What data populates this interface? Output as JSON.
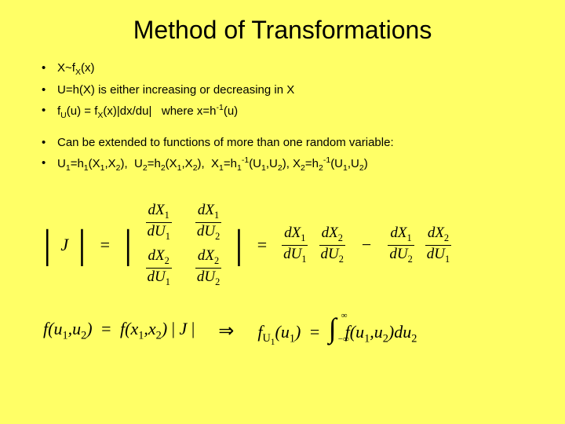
{
  "title": "Method of Transformations",
  "bullets": {
    "b1_html": "X~f<sub>X</sub>(x)",
    "b2": "U=h(X) is either increasing or decreasing in X",
    "b3_html": "f<sub>U</sub>(u) = f<sub>X</sub>(x)|dx/du| &nbsp; where x=h<sup>-1</sup>(u)",
    "b4": "Can be extended to functions of more than one random variable:",
    "b5_html": "U<sub>1</sub>=h<sub>1</sub>(X<sub>1</sub>,X<sub>2</sub>), &nbsp;U<sub>2</sub>=h<sub>2</sub>(X<sub>1</sub>,X<sub>2</sub>), &nbsp;X<sub>1</sub>=h<sub>1</sub><sup>-1</sup>(U<sub>1</sub>,U<sub>2</sub>), X<sub>2</sub>=h<sub>2</sub><sup>-1</sup>(U<sub>1</sub>,U<sub>2</sub>)"
  },
  "math": {
    "J": "J",
    "dX1": "dX",
    "s1": "1",
    "dX2": "dX",
    "s2": "2",
    "dU1": "dU",
    "dU2": "dU",
    "f": "f",
    "u1u2": "u",
    "x1x2": "x",
    "absJ": "J",
    "fU1": "f",
    "U1sub": "U",
    "inf": "∞",
    "ninf": "−∞",
    "du2": "du"
  },
  "style": {
    "background": "#ffff66",
    "text_color": "#000000",
    "title_fontsize": 32,
    "bullet_fontsize": 15,
    "math_fontsize": 22
  }
}
